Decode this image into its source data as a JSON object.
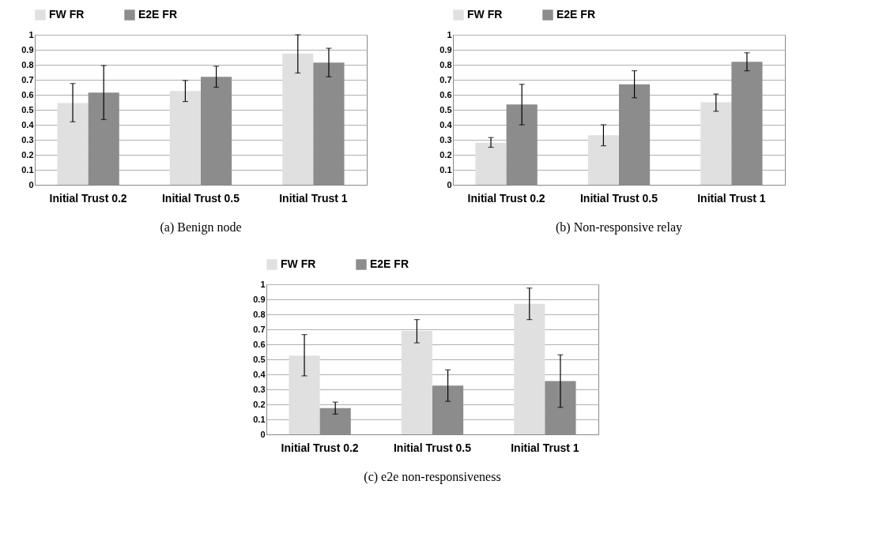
{
  "chart_data": [
    {
      "type": "bar",
      "title": "(a)  Benign node",
      "categories": [
        "Initial Trust 0.2",
        "Initial Trust 0.5",
        "Initial Trust 1"
      ],
      "ylim": [
        0,
        1
      ],
      "yticks": [
        0,
        0.1,
        0.2,
        0.3,
        0.4,
        0.5,
        0.6,
        0.7,
        0.8,
        0.9,
        1
      ],
      "grid": "y",
      "legend": "top",
      "series": [
        {
          "name": "FW FR",
          "color": "#e0e0e0",
          "values": [
            0.545,
            0.625,
            0.875
          ],
          "errors": [
            [
              0.42,
              0.675
            ],
            [
              0.555,
              0.695
            ],
            [
              0.745,
              1.0
            ]
          ]
        },
        {
          "name": "E2E FR",
          "color": "#8c8c8c",
          "values": [
            0.615,
            0.72,
            0.815
          ],
          "errors": [
            [
              0.435,
              0.795
            ],
            [
              0.65,
              0.79
            ],
            [
              0.72,
              0.91
            ]
          ]
        }
      ]
    },
    {
      "type": "bar",
      "title": "(b) Non-responsive relay",
      "categories": [
        "Initial Trust 0.2",
        "Initial Trust 0.5",
        "Initial Trust 1"
      ],
      "ylim": [
        0,
        1
      ],
      "yticks": [
        0,
        0.1,
        0.2,
        0.3,
        0.4,
        0.5,
        0.6,
        0.7,
        0.8,
        0.9,
        1
      ],
      "grid": "y",
      "legend": "top",
      "series": [
        {
          "name": "FW FR",
          "color": "#e0e0e0",
          "values": [
            0.28,
            0.33,
            0.55
          ],
          "errors": [
            [
              0.25,
              0.315
            ],
            [
              0.26,
              0.4
            ],
            [
              0.49,
              0.605
            ]
          ]
        },
        {
          "name": "E2E FR",
          "color": "#8c8c8c",
          "values": [
            0.535,
            0.67,
            0.82
          ],
          "errors": [
            [
              0.4,
              0.67
            ],
            [
              0.58,
              0.76
            ],
            [
              0.76,
              0.88
            ]
          ]
        }
      ]
    },
    {
      "type": "bar",
      "title": "(c) e2e non-responsiveness",
      "categories": [
        "Initial Trust 0.2",
        "Initial Trust 0.5",
        "Initial Trust 1"
      ],
      "ylim": [
        0,
        1
      ],
      "yticks": [
        0,
        0.1,
        0.2,
        0.3,
        0.4,
        0.5,
        0.6,
        0.7,
        0.8,
        0.9,
        1
      ],
      "grid": "y",
      "legend": "top",
      "series": [
        {
          "name": "FW FR",
          "color": "#e0e0e0",
          "values": [
            0.525,
            0.69,
            0.87
          ],
          "errors": [
            [
              0.39,
              0.665
            ],
            [
              0.61,
              0.765
            ],
            [
              0.765,
              0.975
            ]
          ]
        },
        {
          "name": "E2E FR",
          "color": "#8c8c8c",
          "values": [
            0.175,
            0.325,
            0.355
          ],
          "errors": [
            [
              0.135,
              0.215
            ],
            [
              0.22,
              0.43
            ],
            [
              0.18,
              0.53
            ]
          ]
        }
      ]
    }
  ]
}
